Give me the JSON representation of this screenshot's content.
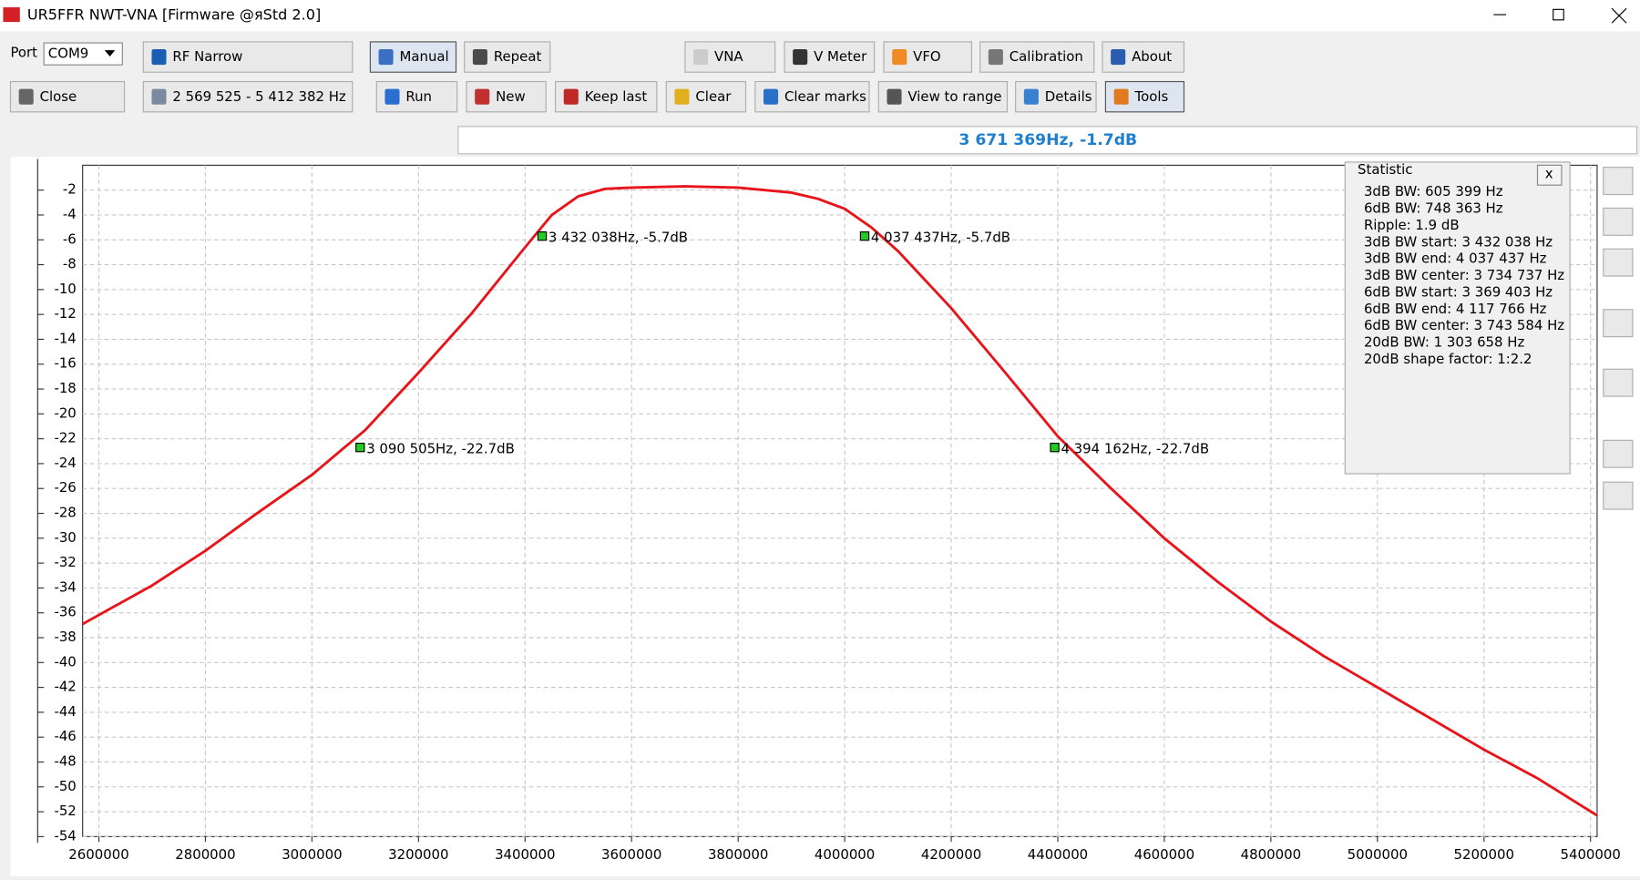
{
  "window": {
    "title": "UR5FFR NWT-VNA [Firmware @яStd 2.0]"
  },
  "toolbar": {
    "port_label": "Port",
    "port": "COM9",
    "mode": "RF Narrow",
    "close": "Close",
    "range": "2 569 525 - 5 412 382 Hz",
    "buttons_row1": [
      "Manual",
      "Repeat",
      "VNA",
      "V Meter",
      "VFO",
      "Calibration",
      "About"
    ],
    "buttons_row2": [
      "Run",
      "New",
      "Keep last",
      "Clear",
      "Clear marks",
      "View to range",
      "Details",
      "Tools"
    ]
  },
  "cursor_readout": "3 671 369Hz, -1.7dB",
  "statistic": {
    "title": "Statistic",
    "close": "x",
    "lines": [
      "3dB BW: 605 399 Hz",
      "6dB BW: 748 363 Hz",
      "Ripple: 1.9 dB",
      "3dB BW start: 3 432 038 Hz",
      "3dB BW end: 4 037 437 Hz",
      "3dB BW center: 3 734 737 Hz",
      "6dB BW start: 3 369 403 Hz",
      "6dB BW end: 4 117 766 Hz",
      "6dB BW center: 3 743 584 Hz",
      "20dB BW: 1 303 658 Hz",
      "20dB shape factor: 1:2.2"
    ]
  },
  "chart_data": {
    "type": "line",
    "x": [
      2569525,
      2700000,
      2800000,
      2900000,
      3000000,
      3100000,
      3200000,
      3300000,
      3400000,
      3450000,
      3500000,
      3550000,
      3600000,
      3700000,
      3800000,
      3900000,
      3950000,
      4000000,
      4050000,
      4100000,
      4200000,
      4300000,
      4400000,
      4500000,
      4600000,
      4700000,
      4800000,
      4900000,
      5000000,
      5100000,
      5200000,
      5300000,
      5412382
    ],
    "series": [
      {
        "color": "#e8141a",
        "values": [
          -36.9,
          -33.8,
          -31.0,
          -27.9,
          -24.9,
          -21.3,
          -16.7,
          -11.9,
          -6.6,
          -4.0,
          -2.5,
          -1.9,
          -1.8,
          -1.7,
          -1.8,
          -2.2,
          -2.7,
          -3.5,
          -5.0,
          -6.9,
          -11.5,
          -16.6,
          -21.8,
          -26.0,
          -30.0,
          -33.5,
          -36.7,
          -39.5,
          -42.0,
          -44.5,
          -47.0,
          -49.3,
          -52.3
        ]
      }
    ],
    "markers": [
      {
        "x": 3432038,
        "y": -5.7,
        "label": "3 432 038Hz, -5.7dB"
      },
      {
        "x": 4037437,
        "y": -5.7,
        "label": "4 037 437Hz, -5.7dB"
      },
      {
        "x": 3090505,
        "y": -22.7,
        "label": "3 090 505Hz, -22.7dB"
      },
      {
        "x": 4394162,
        "y": -22.7,
        "label": "4 394 162Hz, -22.7dB"
      }
    ],
    "marker_color": "#22cc22",
    "xlim": [
      2569525,
      5412382
    ],
    "ylim": [
      -54,
      0
    ],
    "xticks": [
      2600000,
      2800000,
      3000000,
      3200000,
      3400000,
      3600000,
      3800000,
      4000000,
      4200000,
      4400000,
      4600000,
      4800000,
      5000000,
      5200000,
      5400000
    ],
    "yticks": [
      -2,
      -4,
      -6,
      -8,
      -10,
      -12,
      -14,
      -16,
      -18,
      -20,
      -22,
      -24,
      -26,
      -28,
      -30,
      -32,
      -34,
      -36,
      -38,
      -40,
      -42,
      -44,
      -46,
      -48,
      -50,
      -52,
      -54
    ],
    "grid": true
  }
}
